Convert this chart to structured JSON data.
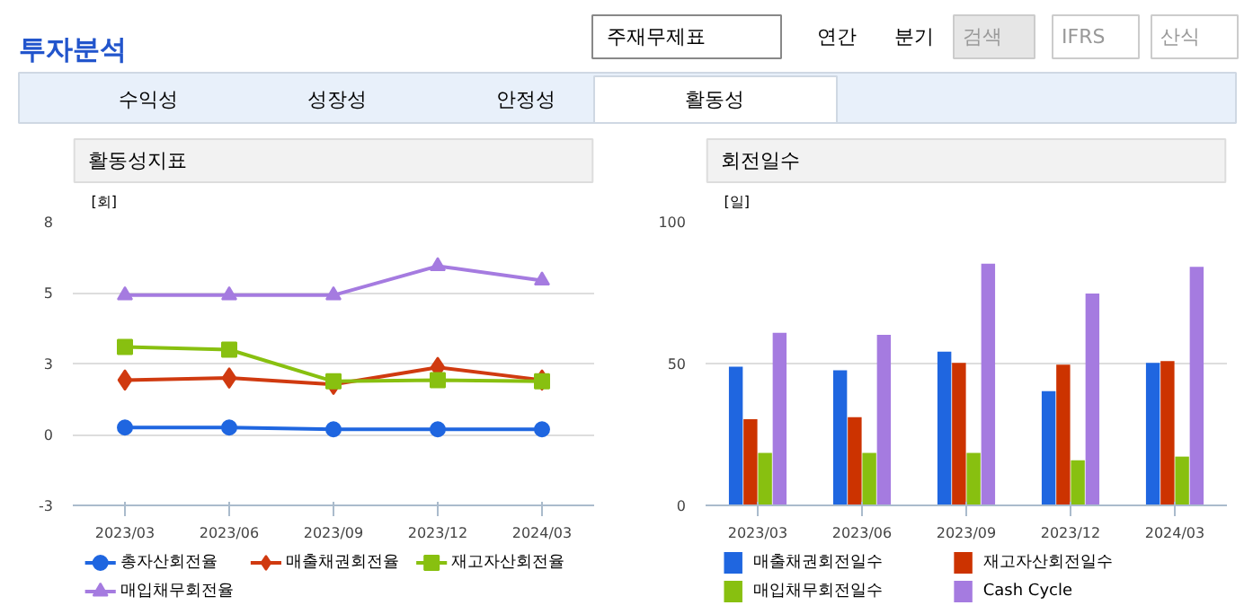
{
  "chart_data": [
    {
      "type": "other",
      "title": "투자분석",
      "annotations": [
        "주재무제표",
        "연간",
        "분기",
        "검색",
        "IFRS",
        "산식",
        "수익성",
        "성장성",
        "안정성",
        "활동성"
      ]
    },
    {
      "type": "line",
      "title": "활동성지표",
      "ylabel": "[회]",
      "categories": [
        "2023/03",
        "2023/06",
        "2023/09",
        "2023/12",
        "2024/03"
      ],
      "ylim": [
        -2.75,
        8.25
      ],
      "yticks": [
        {
          "value": -2.75,
          "label": "-3"
        },
        {
          "value": 0,
          "label": "0"
        },
        {
          "value": 2.75,
          "label": "3"
        },
        {
          "value": 5.5,
          "label": "5"
        },
        {
          "value": 8.25,
          "label": "8"
        }
      ],
      "grid": "y",
      "legend": "bottom",
      "series": [
        {
          "name": "총자산회전율",
          "color": "#1f66e0",
          "marker": "circle",
          "values": [
            0.27,
            0.27,
            0.2,
            0.2,
            0.2
          ]
        },
        {
          "name": "매출채권회전율",
          "color": "#d03a10",
          "marker": "diamond",
          "values": [
            2.11,
            2.19,
            1.94,
            2.6,
            2.11
          ]
        },
        {
          "name": "재고자산회전율",
          "color": "#88c010",
          "marker": "square",
          "values": [
            3.39,
            3.29,
            2.06,
            2.11,
            2.06
          ]
        },
        {
          "name": "매입채무회전율",
          "color": "#a57be0",
          "marker": "triangle",
          "values": [
            5.4,
            5.4,
            5.4,
            6.53,
            5.97
          ]
        }
      ]
    },
    {
      "type": "bar",
      "title": "회전일수",
      "ylabel": "[일]",
      "categories": [
        "2023/03",
        "2023/06",
        "2023/09",
        "2023/12",
        "2024/03"
      ],
      "ylim": [
        0,
        100
      ],
      "yticks": [
        0,
        50,
        100
      ],
      "grid": "y",
      "legend": "bottom",
      "series": [
        {
          "name": "매출채권회전일수",
          "color": "#1f66e0",
          "values": [
            48.9,
            47.6,
            54.2,
            40.3,
            50.2
          ]
        },
        {
          "name": "재고자산회전일수",
          "color": "#cc3300",
          "values": [
            30.4,
            31.1,
            50.2,
            49.6,
            50.9
          ]
        },
        {
          "name": "매입채무회전일수",
          "color": "#88c010",
          "values": [
            18.5,
            18.5,
            18.5,
            15.9,
            17.2
          ]
        },
        {
          "name": "Cash Cycle",
          "color": "#a57be0",
          "values": [
            60.8,
            60.1,
            85.2,
            74.7,
            84.1
          ]
        }
      ]
    }
  ]
}
